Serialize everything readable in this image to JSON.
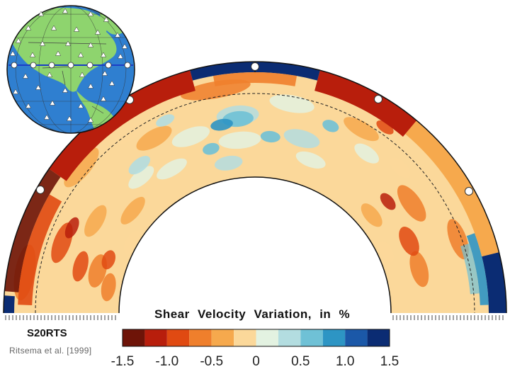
{
  "title": "Shear Velocity Variation, in %",
  "model_name": "S20RTS",
  "citation": "Ritsema et al. [1999]",
  "colorbar": {
    "min": -1.5,
    "max": 1.5,
    "tick_labels": [
      "-1.5",
      "-1.0",
      "-0.5",
      "0",
      "0.5",
      "1.0",
      "1.5"
    ],
    "colors": [
      "#6e1408",
      "#b81e0c",
      "#e04a12",
      "#ef7f2c",
      "#f6a94d",
      "#fbd89a",
      "#e3f2e1",
      "#b3dde0",
      "#6fc1d6",
      "#2d95c4",
      "#1b58a8",
      "#0b2c73"
    ]
  },
  "colors": {
    "ocean": "#2f7fd0",
    "land": "#8ed46e",
    "profile_line": "#1b3ec6",
    "station_fill": "#ffffff"
  },
  "icons": {
    "globe": "globe-inset-icon",
    "station": "triangle-station-icon",
    "marker": "circle-marker-icon"
  }
}
